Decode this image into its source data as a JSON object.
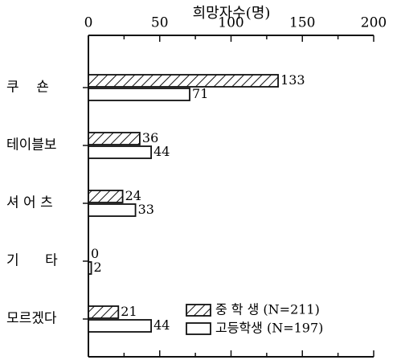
{
  "chart_data": {
    "type": "bar",
    "orientation": "horizontal",
    "x_axis_title": "희망자수(명)",
    "x_ticks": [
      0,
      50,
      100,
      150,
      200
    ],
    "xlim": [
      0,
      200
    ],
    "categories": [
      "쿠    숀",
      "테이블보",
      "셔 어 츠",
      "기      타",
      "모르겠다"
    ],
    "series": [
      {
        "name": "중 학 생 (N=211)",
        "pattern": "hatched",
        "values": [
          133,
          36,
          24,
          0,
          21
        ]
      },
      {
        "name": "고등학생 (N=197)",
        "pattern": "blank",
        "values": [
          71,
          44,
          33,
          2,
          44
        ]
      }
    ],
    "legend_position": "bottom-right",
    "grid": false
  },
  "colors": {
    "ink": "#111111",
    "background": "#ffffff"
  }
}
